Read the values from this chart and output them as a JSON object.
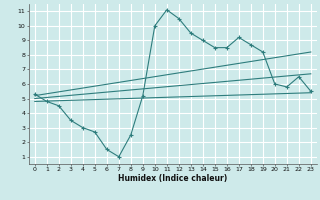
{
  "xlabel": "Humidex (Indice chaleur)",
  "xlim": [
    -0.5,
    23.5
  ],
  "ylim": [
    0.5,
    11.5
  ],
  "xticks": [
    0,
    1,
    2,
    3,
    4,
    5,
    6,
    7,
    8,
    9,
    10,
    11,
    12,
    13,
    14,
    15,
    16,
    17,
    18,
    19,
    20,
    21,
    22,
    23
  ],
  "yticks": [
    1,
    2,
    3,
    4,
    5,
    6,
    7,
    8,
    9,
    10,
    11
  ],
  "bg_color": "#ceeaea",
  "grid_color": "#ffffff",
  "line_color": "#2e7d7d",
  "data_line": {
    "x": [
      0,
      1,
      2,
      3,
      4,
      5,
      6,
      7,
      8,
      9,
      10,
      11,
      12,
      13,
      14,
      15,
      16,
      17,
      18,
      19,
      20,
      21,
      22,
      23
    ],
    "y": [
      5.3,
      4.8,
      4.5,
      3.5,
      3.0,
      2.7,
      1.5,
      1.0,
      2.5,
      5.2,
      10.0,
      11.1,
      10.5,
      9.5,
      9.0,
      8.5,
      8.5,
      9.2,
      8.7,
      8.2,
      6.0,
      5.8,
      6.5,
      5.5
    ]
  },
  "line1": {
    "x": [
      0,
      23
    ],
    "y": [
      5.2,
      8.2
    ]
  },
  "line2": {
    "x": [
      0,
      23
    ],
    "y": [
      5.0,
      6.7
    ]
  },
  "line3": {
    "x": [
      0,
      23
    ],
    "y": [
      4.8,
      5.4
    ]
  }
}
